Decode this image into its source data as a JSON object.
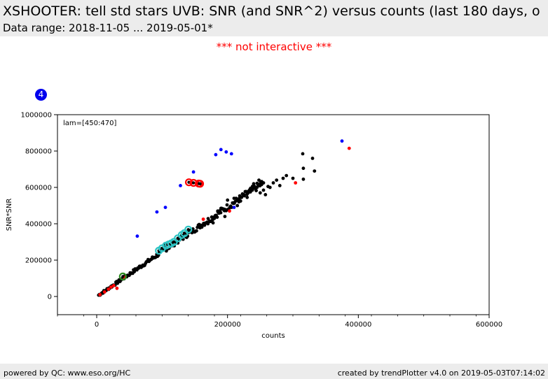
{
  "header": {
    "title": "XSHOOTER: tell std stars UVB: SNR (and SNR^2) versus counts (last 180 days, o",
    "subtitle": "Data range: 2018-11-05 ... 2019-05-01*"
  },
  "notice": "*** not interactive ***",
  "badge": "4",
  "footer": {
    "left": "powered by QC: www.eso.org/HC",
    "right": "created by trendPlotter v4.0 on 2019-05-03T07:14:02"
  },
  "colors": {
    "black": "#000000",
    "red": "#ff0000",
    "blue": "#0000ff",
    "cyan": "#2ec4c4",
    "green": "#2e8b22"
  },
  "chart_data": {
    "type": "scatter",
    "annotation": "lam=[450:470]",
    "xlabel": "counts",
    "ylabel": "SNR*SNR",
    "xlim": [
      -60000,
      600000
    ],
    "ylim": [
      -100000,
      1000000
    ],
    "x_ticks": [
      0,
      200000,
      400000,
      600000
    ],
    "x_tick_labels": [
      "0",
      "200000",
      "400000",
      "600000"
    ],
    "y_ticks": [
      0,
      200000,
      400000,
      600000,
      800000,
      1000000
    ],
    "y_tick_labels": [
      "0",
      "200000",
      "400000",
      "600000",
      "800000",
      "1000000"
    ],
    "grid": false,
    "trend": {
      "x_start": 3000,
      "x_end": 255000,
      "slope": 2.46,
      "points": 190
    },
    "series": [
      {
        "color": "black",
        "points": [
          [
            5000,
            8000
          ],
          [
            34000,
            90000
          ],
          [
            105000,
            290000
          ],
          [
            170000,
            400000
          ],
          [
            178000,
            405000
          ],
          [
            190000,
            485000
          ],
          [
            195000,
            475000
          ],
          [
            200000,
            530000
          ],
          [
            210000,
            515000
          ],
          [
            215000,
            500000
          ],
          [
            218000,
            540000
          ],
          [
            225000,
            560000
          ],
          [
            230000,
            545000
          ],
          [
            235000,
            575000
          ],
          [
            240000,
            620000
          ],
          [
            245000,
            600000
          ],
          [
            248000,
            640000
          ],
          [
            250000,
            570000
          ],
          [
            255000,
            585000
          ],
          [
            258000,
            560000
          ],
          [
            262000,
            605000
          ],
          [
            265000,
            600000
          ],
          [
            270000,
            625000
          ],
          [
            275000,
            640000
          ],
          [
            280000,
            610000
          ],
          [
            285000,
            650000
          ],
          [
            290000,
            665000
          ],
          [
            300000,
            650000
          ],
          [
            315000,
            785000
          ],
          [
            316000,
            705000
          ],
          [
            316000,
            645000
          ],
          [
            330000,
            760000
          ],
          [
            333000,
            690000
          ],
          [
            210000,
            540000
          ],
          [
            196000,
            440000
          ],
          [
            185000,
            470000
          ],
          [
            205000,
            495000
          ],
          [
            220000,
            525000
          ],
          [
            238000,
            585000
          ],
          [
            252000,
            615000
          ]
        ]
      },
      {
        "color": "red",
        "points": [
          [
            5000,
            10000
          ],
          [
            12000,
            25000
          ],
          [
            18000,
            40000
          ],
          [
            22000,
            52000
          ],
          [
            26000,
            60000
          ],
          [
            31000,
            45000
          ],
          [
            42000,
            105000
          ],
          [
            163000,
            425000
          ],
          [
            203000,
            470000
          ],
          [
            304000,
            625000
          ],
          [
            386000,
            815000
          ]
        ]
      },
      {
        "color": "blue",
        "points": [
          [
            62000,
            332000
          ],
          [
            92000,
            465000
          ],
          [
            105000,
            490000
          ],
          [
            128000,
            610000
          ],
          [
            148000,
            685000
          ],
          [
            182000,
            780000
          ],
          [
            190000,
            808000
          ],
          [
            198000,
            795000
          ],
          [
            206000,
            785000
          ],
          [
            210000,
            490000
          ],
          [
            375000,
            855000
          ]
        ]
      }
    ],
    "highlights": [
      {
        "color": "red",
        "points": [
          [
            141000,
            628000
          ],
          [
            148000,
            625000
          ],
          [
            156000,
            621000
          ],
          [
            158000,
            620000
          ]
        ]
      },
      {
        "color": "cyan",
        "points": [
          [
            95000,
            252000
          ],
          [
            100000,
            265000
          ],
          [
            106000,
            280000
          ],
          [
            110000,
            286000
          ],
          [
            114000,
            292000
          ],
          [
            118000,
            300000
          ],
          [
            124000,
            320000
          ],
          [
            130000,
            338000
          ],
          [
            134000,
            348000
          ],
          [
            140000,
            368000
          ]
        ]
      },
      {
        "color": "green",
        "points": [
          [
            40000,
            110000
          ]
        ]
      }
    ]
  }
}
